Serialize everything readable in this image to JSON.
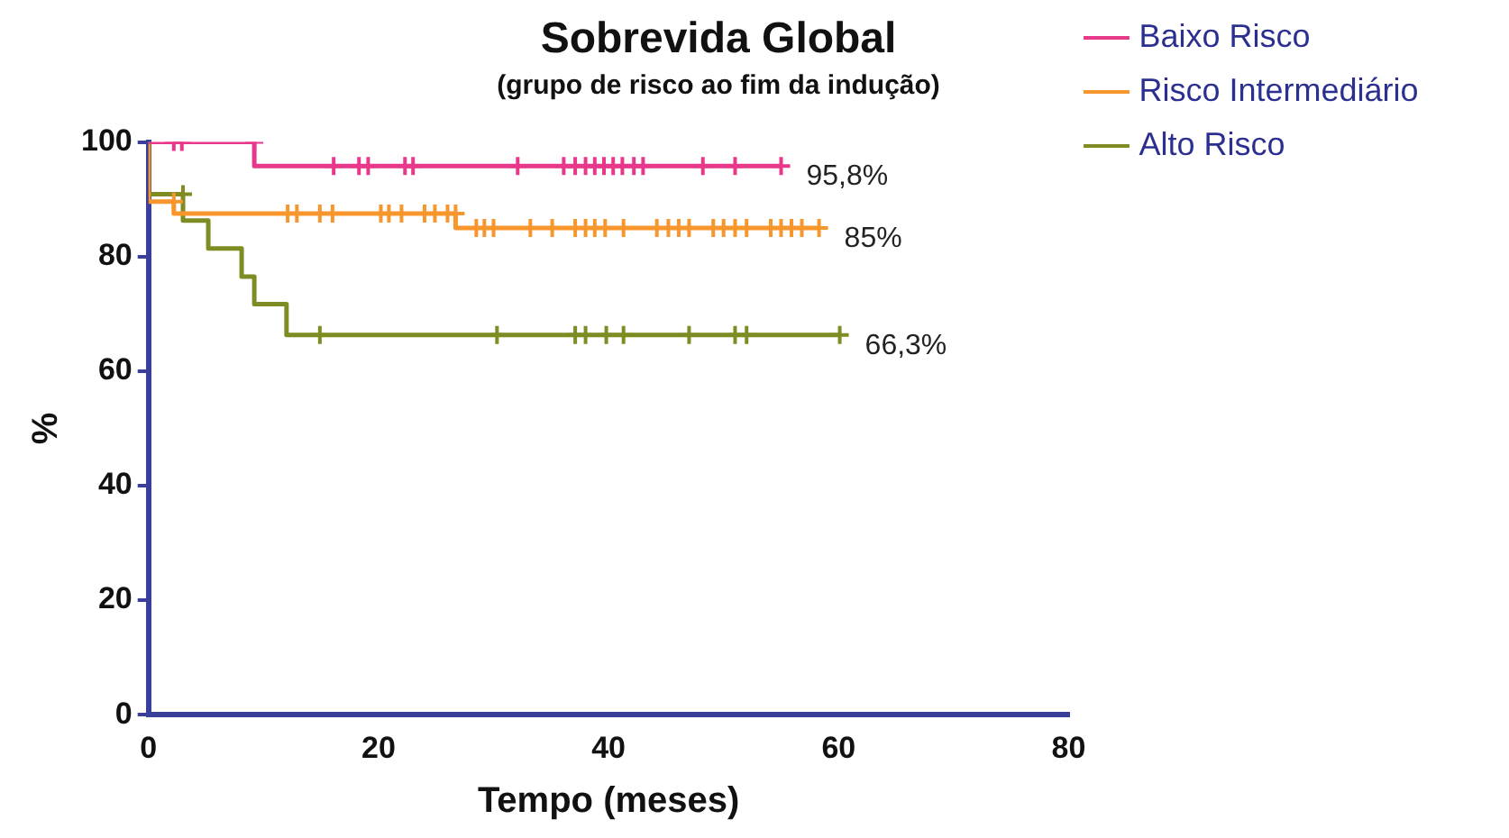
{
  "chart_data": {
    "type": "step",
    "title": "Sobrevida Global",
    "subtitle": "(grupo de risco ao fim da indução)",
    "xlabel": "Tempo (meses)",
    "ylabel": "%",
    "xlim": [
      0,
      80
    ],
    "xticks": [
      0,
      20,
      40,
      60,
      80
    ],
    "ylim": [
      0,
      100
    ],
    "yticks": [
      0,
      20,
      40,
      60,
      80,
      100
    ],
    "grid": false,
    "legend": "right",
    "marker": "cross",
    "line_style": "solid",
    "series": [
      {
        "name": "Baixo Risco",
        "color": "#e8388a",
        "x": [
          0,
          2.2,
          2.9,
          9.2,
          13.2,
          16.1,
          18.3,
          19.1,
          22.3,
          23,
          32.1,
          36.1,
          37.1,
          38,
          38.8,
          39.6,
          40.4,
          41.2,
          42.2,
          43,
          48.2,
          51,
          55
        ],
        "values": [
          100,
          100,
          100,
          100,
          95.8,
          95.8,
          95.8,
          95.8,
          95.8,
          95.8,
          95.8,
          95.8,
          95.8,
          95.8,
          95.8,
          95.8,
          95.8,
          95.8,
          95.8,
          95.8,
          95.8,
          95.8,
          95.8
        ]
      },
      {
        "name": "Risco Intermediário",
        "color": "#f7962c",
        "x": [
          0,
          1,
          2.2,
          6.2,
          12.1,
          12.9,
          14.9,
          16,
          20.2,
          20.9,
          22,
          24,
          24.9,
          26,
          26.7,
          28,
          28.5,
          29.2,
          30,
          33.2,
          35.1,
          37.1,
          38,
          38.8,
          39.7,
          41.3,
          44.2,
          45.2,
          46.1,
          47,
          49.1,
          50,
          51,
          52,
          54.1,
          55,
          55.9,
          56.8,
          58.3
        ],
        "values": [
          100,
          89.6,
          89.6,
          87.5,
          87.5,
          87.5,
          87.5,
          87.5,
          87.5,
          87.5,
          87.5,
          87.5,
          87.5,
          87.5,
          87.5,
          85,
          85,
          85,
          85,
          85,
          85,
          85,
          85,
          85,
          85,
          85,
          85,
          85,
          85,
          85,
          85,
          85,
          85,
          85,
          85,
          85,
          85,
          85,
          85
        ]
      },
      {
        "name": "Alto Risco",
        "color": "#7f8c23",
        "x": [
          0,
          1.1,
          3,
          5.2,
          8.1,
          9.2,
          12,
          14.3,
          14.9,
          30.3,
          37.1,
          38,
          39.8,
          41.3,
          47,
          51,
          52,
          60.1
        ],
        "values": [
          100,
          90.9,
          90.9,
          86.3,
          81.4,
          76.5,
          71.7,
          66.3,
          66.3,
          66.3,
          66.3,
          66.3,
          66.3,
          66.3,
          66.3,
          66.3,
          66.3,
          66.3
        ]
      }
    ],
    "annotations": [
      {
        "text": "95,8%",
        "x": 55,
        "y": 95.8
      },
      {
        "text": "85%",
        "x": 58.3,
        "y": 85
      },
      {
        "text": "66,3%",
        "x": 60.1,
        "y": 66.3
      }
    ]
  }
}
